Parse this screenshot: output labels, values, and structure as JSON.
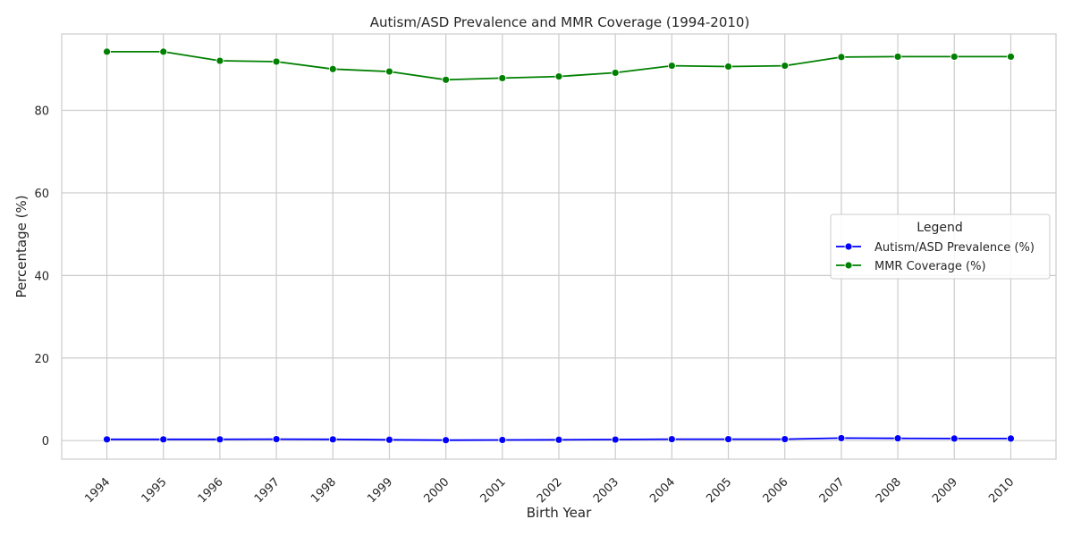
{
  "chart_data": {
    "type": "line",
    "title": "Autism/ASD Prevalence and MMR Coverage (1994-2010)",
    "xlabel": "Birth Year",
    "ylabel": "Percentage (%)",
    "x": [
      1994,
      1995,
      1996,
      1997,
      1998,
      1999,
      2000,
      2001,
      2002,
      2003,
      2004,
      2005,
      2006,
      2007,
      2008,
      2009,
      2010
    ],
    "x_tick_labels": [
      "1994",
      "1995",
      "1996",
      "1997",
      "1998",
      "1999",
      "2000",
      "2001",
      "2002",
      "2003",
      "2004",
      "2005",
      "2006",
      "2007",
      "2008",
      "2009",
      "2010"
    ],
    "ylim": [
      -4.5,
      98.5
    ],
    "yticks": [
      0,
      20,
      40,
      60,
      80
    ],
    "y_tick_labels": [
      "0",
      "20",
      "40",
      "60",
      "80"
    ],
    "grid": true,
    "legend_title": "Legend",
    "legend_position": "center-right",
    "series": [
      {
        "name": "Autism/ASD Prevalence (%)",
        "color": "#0000ff",
        "marker": "circle",
        "values": [
          0.3,
          0.3,
          0.3,
          0.35,
          0.3,
          0.2,
          0.1,
          0.15,
          0.2,
          0.25,
          0.35,
          0.35,
          0.35,
          0.6,
          0.55,
          0.5,
          0.5
        ]
      },
      {
        "name": "MMR Coverage (%)",
        "color": "#008000",
        "marker": "circle",
        "values": [
          94.2,
          94.2,
          92.0,
          91.8,
          90.0,
          89.4,
          87.4,
          87.8,
          88.2,
          89.1,
          90.8,
          90.6,
          90.8,
          92.9,
          93.0,
          93.0,
          93.0
        ]
      }
    ]
  }
}
